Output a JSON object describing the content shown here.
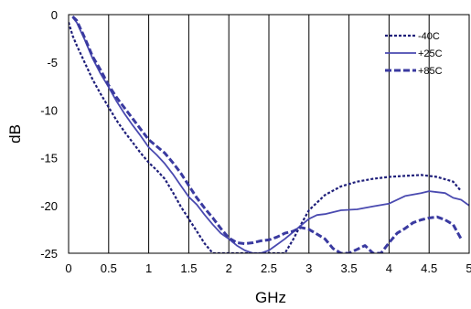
{
  "chart_data": {
    "type": "line",
    "title": "",
    "xlabel": "GHz",
    "ylabel": "dB",
    "xlim": [
      0,
      5
    ],
    "ylim": [
      -25,
      0
    ],
    "xticks": [
      "0",
      "0.5",
      "1",
      "1.5",
      "2",
      "2.5",
      "3",
      "3.5",
      "4",
      "4.5",
      "5"
    ],
    "yticks": [
      "0",
      "-5",
      "-10",
      "-15",
      "-20",
      "-25"
    ],
    "grid": "vertical",
    "legend_position": "top-right",
    "series": [
      {
        "name": "-40C",
        "color": "#1f1f7a",
        "style": "dotted",
        "x": [
          0.0,
          0.05,
          0.1,
          0.2,
          0.3,
          0.4,
          0.5,
          0.6,
          0.7,
          0.8,
          0.9,
          1.0,
          1.1,
          1.2,
          1.3,
          1.4,
          1.5,
          1.6,
          1.7,
          1.8,
          2.7,
          2.8,
          2.9,
          3.0,
          3.2,
          3.4,
          3.6,
          3.8,
          4.0,
          4.2,
          4.4,
          4.6,
          4.8,
          4.9
        ],
        "y": [
          -0.8,
          -2.2,
          -3.2,
          -5.0,
          -6.8,
          -8.3,
          -9.7,
          -11.1,
          -12.3,
          -13.4,
          -14.5,
          -15.5,
          -16.3,
          -17.2,
          -18.6,
          -20.1,
          -21.4,
          -22.7,
          -24.0,
          -25.0,
          -25.0,
          -23.6,
          -22.0,
          -20.5,
          -18.9,
          -18.0,
          -17.5,
          -17.2,
          -17.0,
          -16.9,
          -16.8,
          -17.0,
          -17.5,
          -18.5
        ]
      },
      {
        "name": "+25C",
        "color": "#4a4ab0",
        "style": "solid",
        "x": [
          0.05,
          0.1,
          0.2,
          0.3,
          0.4,
          0.5,
          0.6,
          0.7,
          0.8,
          0.9,
          1.0,
          1.1,
          1.2,
          1.3,
          1.4,
          1.5,
          1.6,
          1.7,
          1.8,
          1.9,
          2.0,
          2.1,
          2.2,
          2.3,
          2.4,
          2.5,
          2.6,
          2.7,
          2.8,
          2.9,
          3.0,
          3.1,
          3.2,
          3.4,
          3.6,
          3.8,
          4.0,
          4.2,
          4.4,
          4.5,
          4.6,
          4.7,
          4.8,
          4.9,
          5.0
        ],
        "y": [
          -0.3,
          -0.8,
          -2.6,
          -4.6,
          -6.2,
          -7.6,
          -9.1,
          -10.4,
          -11.6,
          -12.7,
          -13.9,
          -14.7,
          -15.6,
          -16.7,
          -17.9,
          -19.1,
          -19.9,
          -21.0,
          -22.0,
          -22.9,
          -23.5,
          -24.2,
          -24.7,
          -25.0,
          -25.0,
          -24.7,
          -24.1,
          -23.5,
          -22.8,
          -22.1,
          -21.4,
          -21.0,
          -20.9,
          -20.5,
          -20.4,
          -20.1,
          -19.8,
          -19.0,
          -18.7,
          -18.5,
          -18.6,
          -18.7,
          -19.2,
          -19.4,
          -20.0
        ]
      },
      {
        "name": "+85C",
        "color": "#3a3aa0",
        "style": "dashed",
        "x": [
          0.05,
          0.1,
          0.2,
          0.3,
          0.4,
          0.5,
          0.6,
          0.7,
          0.8,
          0.9,
          1.0,
          1.1,
          1.2,
          1.3,
          1.4,
          1.5,
          1.6,
          1.7,
          1.8,
          1.9,
          2.0,
          2.1,
          2.2,
          2.3,
          2.4,
          2.5,
          2.6,
          2.7,
          2.8,
          2.9,
          3.0,
          3.1,
          3.2,
          3.3,
          3.4,
          3.5,
          3.6,
          3.7,
          3.8,
          3.9,
          4.0,
          4.1,
          4.2,
          4.3,
          4.4,
          4.5,
          4.6,
          4.7,
          4.8,
          4.9
        ],
        "y": [
          -0.2,
          -0.6,
          -2.4,
          -4.4,
          -5.8,
          -7.4,
          -8.7,
          -9.8,
          -10.9,
          -12.0,
          -13.1,
          -13.8,
          -14.5,
          -15.5,
          -16.6,
          -17.9,
          -19.2,
          -20.3,
          -21.3,
          -22.4,
          -23.4,
          -23.9,
          -24.0,
          -23.9,
          -23.7,
          -23.6,
          -23.3,
          -22.9,
          -22.7,
          -22.3,
          -22.5,
          -23.0,
          -23.5,
          -24.5,
          -25.0,
          -25.0,
          -24.6,
          -24.2,
          -25.0,
          -25.0,
          -23.9,
          -22.9,
          -22.4,
          -21.8,
          -21.5,
          -21.3,
          -21.2,
          -21.5,
          -22.0,
          -23.5
        ]
      }
    ]
  }
}
